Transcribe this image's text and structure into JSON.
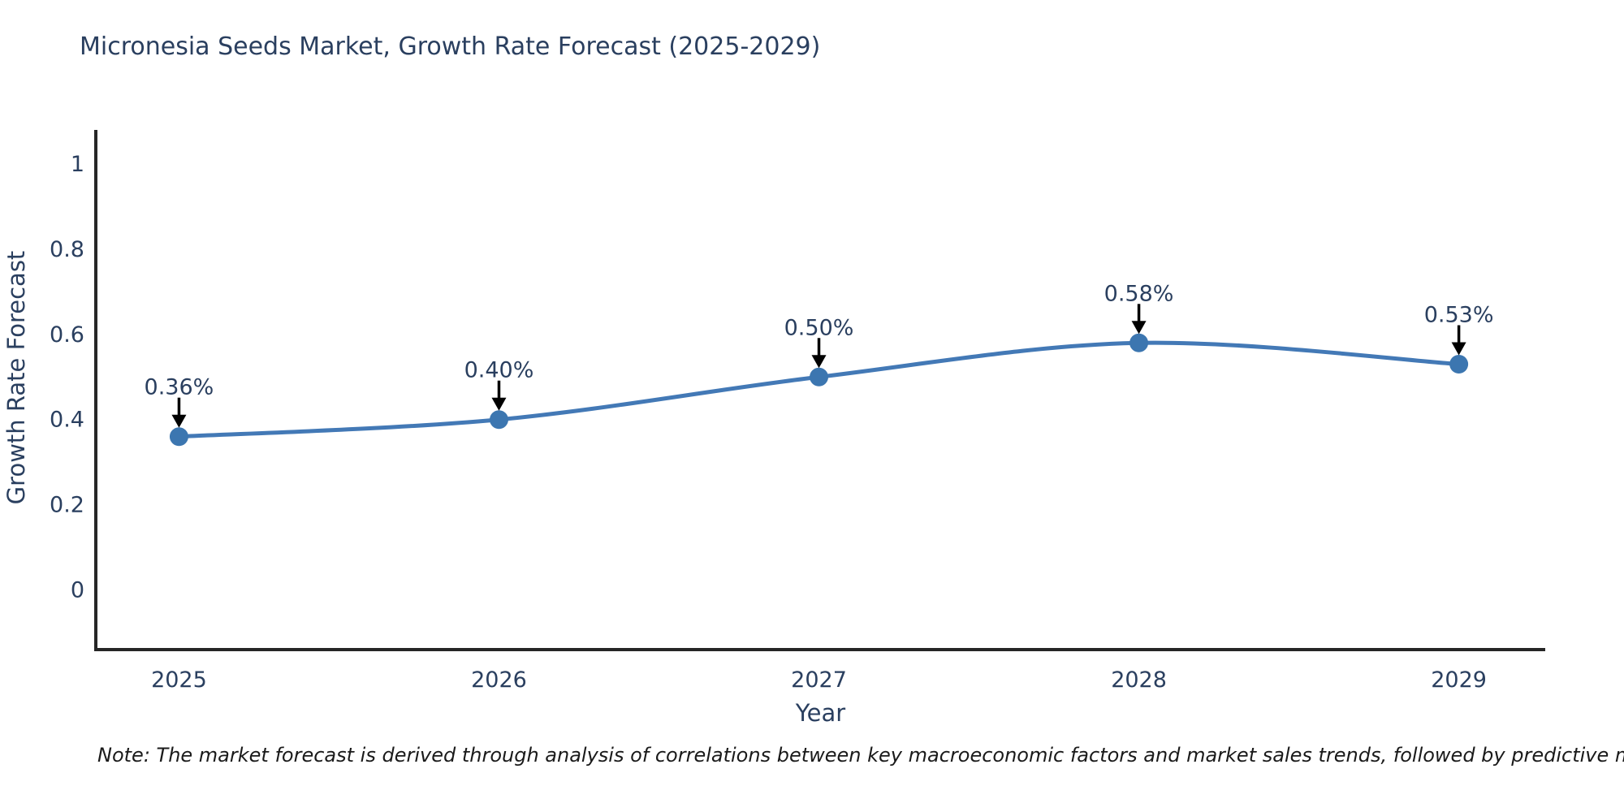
{
  "figure": {
    "title": "Micronesia Seeds Market, Growth Rate Forecast (2025-2029)",
    "note": "Note: The market forecast is derived through analysis of correlations between key macroeconomic factors and market sales trends, followed by predictive modeling to project future sales"
  },
  "chart_data": {
    "type": "line",
    "title": "Micronesia Seeds Market, Growth Rate Forecast (2025-2029)",
    "xlabel": "Year",
    "ylabel": "Growth Rate Forecast",
    "categories": [
      2025,
      2026,
      2027,
      2028,
      2029
    ],
    "series": [
      {
        "name": "Growth Rate Forecast",
        "values": [
          0.36,
          0.4,
          0.5,
          0.58,
          0.53
        ],
        "labels": [
          "0.36%",
          "0.40%",
          "0.50%",
          "0.58%",
          "0.53%"
        ]
      }
    ],
    "yticks": [
      "0",
      "0.2",
      "0.4",
      "0.6",
      "0.8",
      "1"
    ],
    "ytick_values": [
      0,
      0.2,
      0.4,
      0.6,
      0.8,
      1
    ],
    "ylim": [
      -0.14,
      1.08
    ],
    "xlim": [
      2024.74,
      2029.27
    ],
    "grid": false,
    "legend_position": "none",
    "line_shape": "spline",
    "annotation_arrows": true,
    "colors": {
      "line": "#4379b6",
      "marker": "#3c76b0",
      "text": "#2a3f5f",
      "axis_line": "#262626",
      "arrow": "#000000",
      "background": "#ffffff"
    }
  }
}
